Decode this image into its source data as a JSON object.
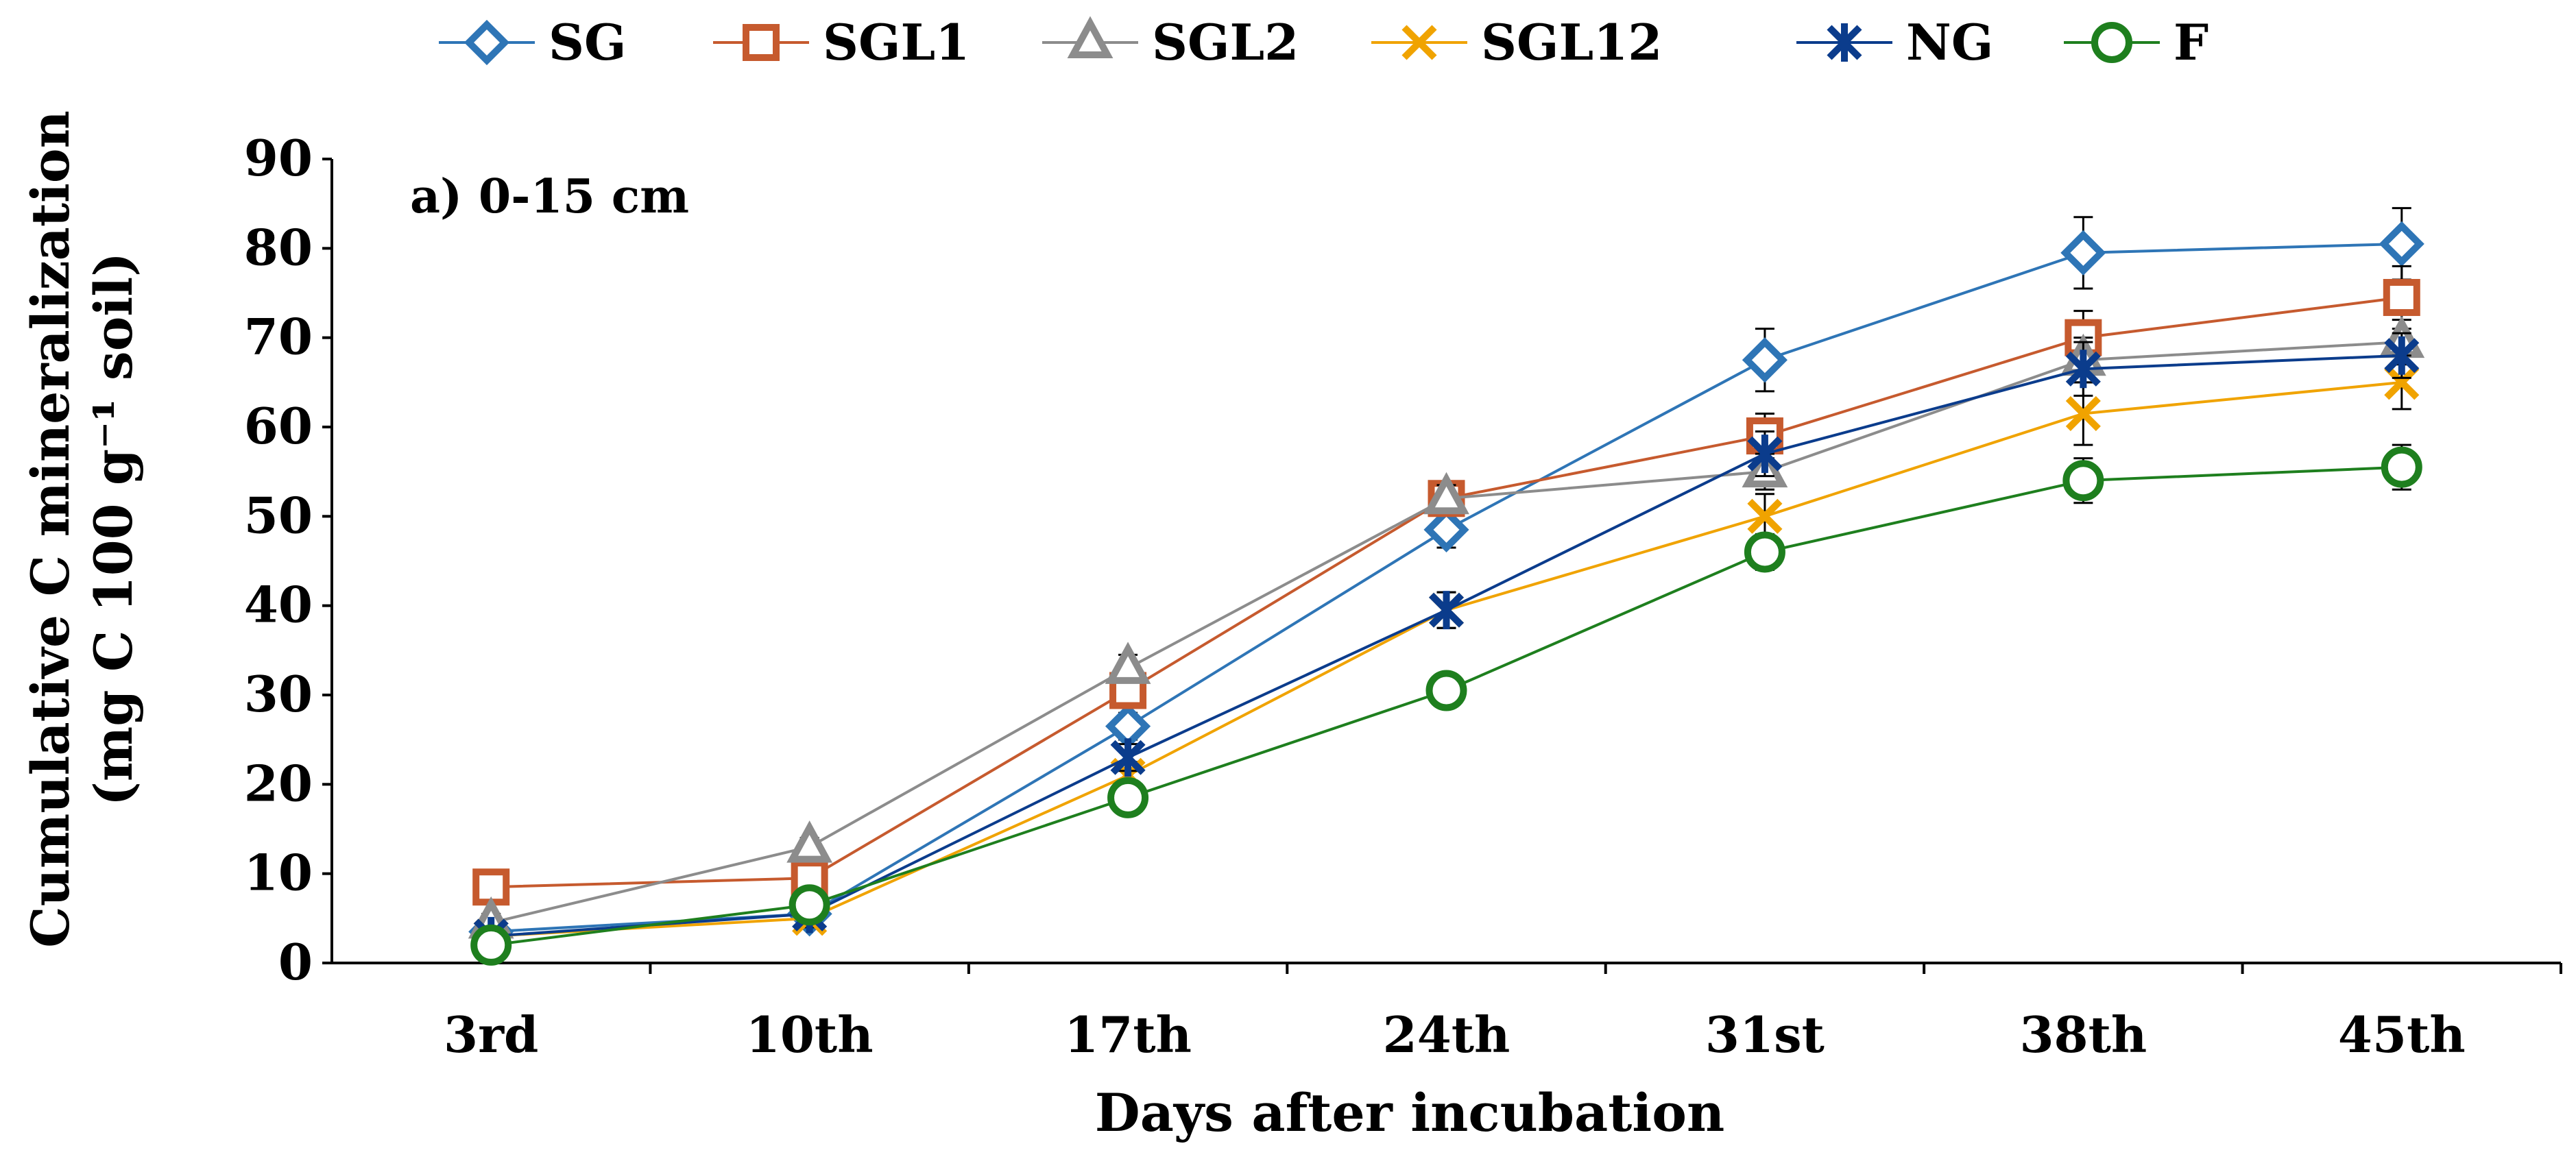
{
  "chart_data": {
    "type": "line",
    "title": "",
    "annotation": "a) 0-15 cm",
    "xlabel": "Days after incubation",
    "ylabel_line1": "Cumulative C mineralization",
    "ylabel_line2": "(mg C 100 g⁻¹ soil)",
    "categories": [
      "3rd",
      "10th",
      "17th",
      "24th",
      "31st",
      "38th",
      "45th"
    ],
    "ylim": [
      0,
      90
    ],
    "yticks": [
      0,
      10,
      20,
      30,
      40,
      50,
      60,
      70,
      80,
      90
    ],
    "legend_position": "top",
    "series": [
      {
        "name": "SG",
        "color": "#2E75B6",
        "marker": "diamond",
        "values": [
          3.5,
          5.5,
          26.5,
          48.5,
          67.5,
          79.5,
          80.5
        ],
        "errors": [
          1.0,
          1.0,
          1.5,
          2.0,
          3.5,
          4.0,
          4.0
        ]
      },
      {
        "name": "SGL1",
        "color": "#C65A2E",
        "marker": "square",
        "values": [
          8.5,
          9.5,
          30.5,
          52.0,
          59.0,
          70.0,
          74.5
        ],
        "errors": [
          1.0,
          1.0,
          1.5,
          1.5,
          2.5,
          3.0,
          3.5
        ]
      },
      {
        "name": "SGL2",
        "color": "#8C8C8C",
        "marker": "triangle",
        "values": [
          4.5,
          13.0,
          33.0,
          52.0,
          55.0,
          67.5,
          69.5
        ],
        "errors": [
          1.0,
          1.0,
          1.5,
          1.5,
          2.0,
          2.5,
          2.5
        ]
      },
      {
        "name": "SGL12",
        "color": "#F0A300",
        "marker": "x",
        "values": [
          3.0,
          5.0,
          21.0,
          39.5,
          50.0,
          61.5,
          65.0
        ],
        "errors": [
          1.0,
          1.0,
          1.5,
          2.0,
          2.5,
          3.5,
          3.0
        ]
      },
      {
        "name": "NG",
        "color": "#0B3C8C",
        "marker": "asterisk",
        "values": [
          3.0,
          5.5,
          23.0,
          39.5,
          57.0,
          66.5,
          68.0
        ],
        "errors": [
          1.0,
          1.0,
          1.5,
          2.0,
          2.5,
          3.0,
          2.5
        ]
      },
      {
        "name": "F",
        "color": "#1E7F1E",
        "marker": "circle",
        "values": [
          2.0,
          6.5,
          18.5,
          30.5,
          46.0,
          54.0,
          55.5
        ],
        "errors": [
          1.0,
          1.0,
          1.5,
          1.5,
          2.0,
          2.5,
          2.5
        ]
      }
    ]
  }
}
